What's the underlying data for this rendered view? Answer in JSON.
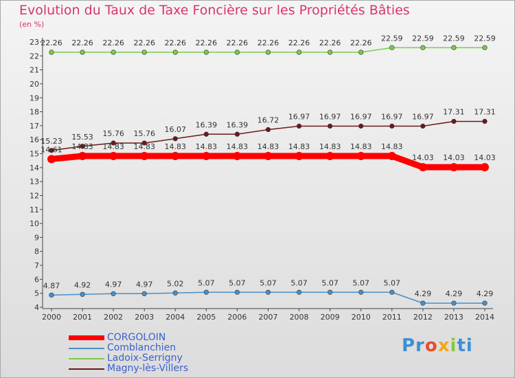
{
  "chart_data": {
    "type": "line",
    "title": "Evolution du Taux de Taxe Foncière sur les Propriétés Bâties",
    "subtitle": "(en %)",
    "x": [
      "2000",
      "2001",
      "2002",
      "2003",
      "2004",
      "2005",
      "2006",
      "2007",
      "2008",
      "2009",
      "2010",
      "2011",
      "2012",
      "2013",
      "2014"
    ],
    "ylim": [
      4,
      23
    ],
    "yticks": [
      4,
      5,
      6,
      7,
      8,
      9,
      10,
      11,
      12,
      13,
      14,
      15,
      16,
      17,
      18,
      19,
      20,
      21,
      22,
      23
    ],
    "grid": false,
    "series": [
      {
        "name": "CORGOLOIN",
        "color": "#ff0000",
        "values": [
          14.61,
          14.83,
          14.83,
          14.83,
          14.83,
          14.83,
          14.83,
          14.83,
          14.83,
          14.83,
          14.83,
          14.83,
          14.03,
          14.03,
          14.03
        ],
        "labels": [
          "14.61",
          "14.83",
          "14.83",
          "14.83",
          "14.83",
          "14.83",
          "14.83",
          "14.83",
          "14.83",
          "14.83",
          "14.83",
          "14.83",
          "14.03",
          "14.03",
          "14.03"
        ]
      },
      {
        "name": "Comblanchien",
        "color": "#4a8fc7",
        "values": [
          4.87,
          4.92,
          4.97,
          4.97,
          5.02,
          5.07,
          5.07,
          5.07,
          5.07,
          5.07,
          5.07,
          5.07,
          4.29,
          4.29,
          4.29
        ],
        "labels": [
          "4.87",
          "4.92",
          "4.97",
          "4.97",
          "5.02",
          "5.07",
          "5.07",
          "5.07",
          "5.07",
          "5.07",
          "5.07",
          "5.07",
          "4.29",
          "4.29",
          "4.29"
        ]
      },
      {
        "name": "Ladoix-Serrigny",
        "color": "#7acc4a",
        "values": [
          22.26,
          22.26,
          22.26,
          22.26,
          22.26,
          22.26,
          22.26,
          22.26,
          22.26,
          22.26,
          22.26,
          22.59,
          22.59,
          22.59,
          22.59
        ],
        "labels": [
          "22.26",
          "22.26",
          "22.26",
          "22.26",
          "22.26",
          "22.26",
          "22.26",
          "22.26",
          "22.26",
          "22.26",
          "22.26",
          "22.59",
          "22.59",
          "22.59",
          "22.59"
        ]
      },
      {
        "name": "Magny-lès-Villers",
        "color": "#6b1a1a",
        "values": [
          15.23,
          15.53,
          15.76,
          15.76,
          16.07,
          16.39,
          16.39,
          16.72,
          16.97,
          16.97,
          16.97,
          16.97,
          16.97,
          17.31,
          17.31
        ],
        "labels": [
          "15.23",
          "15.53",
          "15.76",
          "15.76",
          "16.07",
          "16.39",
          "16.39",
          "16.72",
          "16.97",
          "16.97",
          "16.97",
          "16.97",
          "16.97",
          "17.31",
          "17.31"
        ]
      }
    ],
    "legend_position": "bottom-left",
    "logo_text": [
      "Pr",
      "o",
      "x",
      "i",
      "ti"
    ]
  }
}
